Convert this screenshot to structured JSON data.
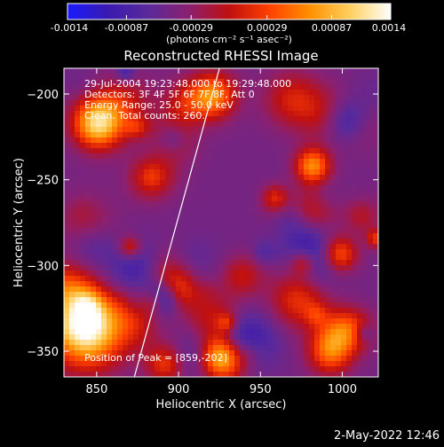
{
  "chart_data": {
    "type": "heatmap",
    "title": "Reconstructed RHESSI Image",
    "xlabel": "Heliocentric X (arcsec)",
    "ylabel": "Heliocentric Y (arcsec)",
    "xlim": [
      830,
      1022
    ],
    "ylim": [
      -365,
      -185
    ],
    "x_ticks": [
      850,
      900,
      950,
      1000
    ],
    "y_ticks": [
      -200,
      -250,
      -300,
      -350
    ],
    "colorbar": {
      "unit_label": "(photons cm⁻² s⁻¹ asec⁻²)",
      "ticks": [
        "-0.0014",
        "-0.00087",
        "-0.00029",
        "0.00029",
        "0.00087",
        "0.0014"
      ],
      "range": [
        -0.0014,
        0.0014
      ],
      "colors": [
        "#1a1aff",
        "#3a1ab0",
        "#5a2a9a",
        "#8a2070",
        "#c01010",
        "#ff4000",
        "#ff9000",
        "#ffd060",
        "#ffffff"
      ]
    },
    "annotations": [
      "29-Jul-2004 19:23:48.000 to 19:29:48.000",
      "Detectors: 3F 4F 5F 6F 7F 8F, Att 0",
      "Energy Range: 25.0 - 50.0 keV",
      "Clean. Total counts: 260.",
      "Position of Peak = [859,-202]"
    ],
    "limb_line": {
      "from": [
        873,
        -365
      ],
      "to": [
        925,
        -185
      ]
    },
    "peak": [
      859,
      -202
    ],
    "grid": false
  },
  "footer": {
    "date_stamp": "2-May-2022 12:46"
  }
}
